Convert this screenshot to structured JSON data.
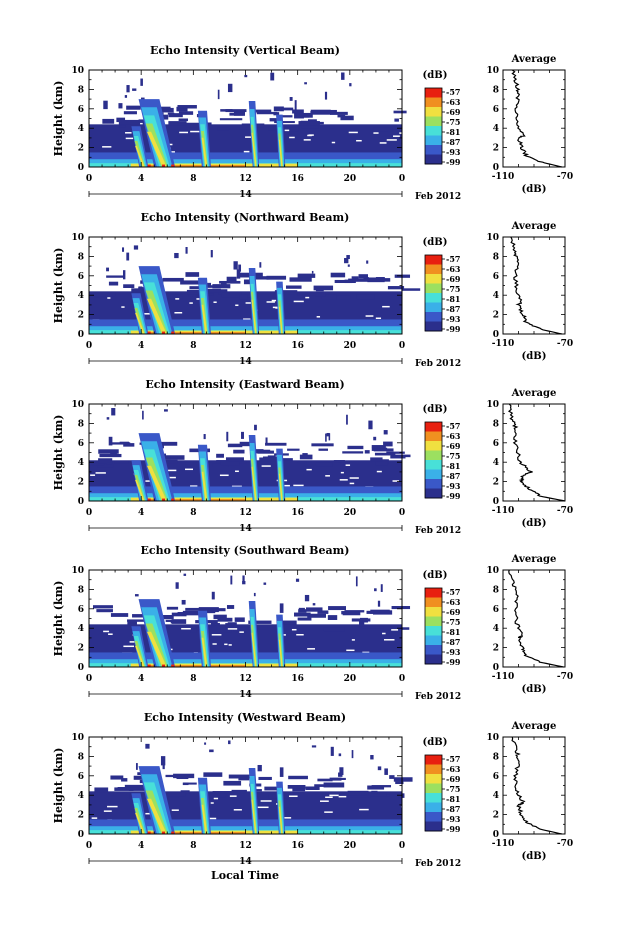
{
  "beam_titles": [
    "Echo Intensity (Vertical Beam)",
    "Echo Intensity (Northward Beam)",
    "Echo Intensity (Eastward Beam)",
    "Echo Intensity (Southward Beam)",
    "Echo Intensity (Westward Beam)"
  ],
  "ylabel": "Height (km)",
  "xlabel": "Local Time",
  "date_suffix": "Feb 2012",
  "date_day": "14",
  "colorbar_unit": "(dB)",
  "colorbar_ticks": [
    "-57",
    "-63",
    "-69",
    "-75",
    "-81",
    "-87",
    "-93",
    "-99"
  ],
  "average_title": "Average",
  "average_xlabel": "(dB)",
  "average_xticks": [
    "-110",
    "-70"
  ],
  "x_ticks": [
    "0",
    "4",
    "8",
    "12",
    "16",
    "20",
    "0"
  ],
  "y_ticks": [
    "0",
    "2",
    "4",
    "6",
    "8",
    "10"
  ],
  "colors": {
    "background_noise": "#2b2f8c",
    "low": "#3a58c8",
    "mid": "#3ab0e8",
    "cyan": "#48e0d8",
    "green": "#9ce060",
    "yellow": "#f0e040",
    "orange": "#f09020",
    "red": "#e82010"
  },
  "chart_data": [
    {
      "type": "heatmap",
      "title": "Echo Intensity (Vertical Beam)",
      "xlabel": "",
      "ylabel": "Height (km)",
      "x_range": [
        0,
        24
      ],
      "ylim": [
        0,
        10
      ],
      "color_range_db": [
        -99,
        -57
      ],
      "features": {
        "noise_layer_top_km": 4.4,
        "high_intensity_bands_hours": [
          4.2,
          5.8,
          9.0,
          12.8,
          14.8
        ]
      },
      "average_profile": {
        "x_db": [
          -72,
          -85,
          -95,
          -98,
          -100,
          -97,
          -101,
          -102,
          -100,
          -101,
          -104
        ],
        "y_km": [
          0,
          0.5,
          1.2,
          2,
          3,
          3.2,
          4.5,
          6,
          7.5,
          8.5,
          10
        ]
      }
    },
    {
      "type": "heatmap",
      "title": "Echo Intensity (Northward Beam)",
      "xlabel": "",
      "ylabel": "Height (km)",
      "x_range": [
        0,
        24
      ],
      "ylim": [
        0,
        10
      ],
      "color_range_db": [
        -99,
        -57
      ],
      "features": {
        "noise_layer_top_km": 4.4,
        "high_intensity_bands_hours": [
          4.2,
          5.8,
          9.0,
          12.8,
          14.8
        ]
      },
      "average_profile": {
        "x_db": [
          -72,
          -86,
          -95,
          -97,
          -100,
          -98,
          -101,
          -102,
          -101,
          -102,
          -105
        ],
        "y_km": [
          0,
          0.5,
          1.2,
          2,
          3,
          3.2,
          4.5,
          6,
          7.5,
          8.5,
          10
        ]
      }
    },
    {
      "type": "heatmap",
      "title": "Echo Intensity (Eastward Beam)",
      "xlabel": "",
      "ylabel": "Height (km)",
      "x_range": [
        0,
        24
      ],
      "ylim": [
        0,
        10
      ],
      "color_range_db": [
        -99,
        -57
      ],
      "features": {
        "noise_layer_top_km": 4.2,
        "high_intensity_bands_hours": [
          4.2,
          5.8,
          9.0,
          12.8,
          14.8
        ]
      },
      "average_profile": {
        "x_db": [
          -70,
          -86,
          -93,
          -98,
          -97,
          -92,
          -99,
          -102,
          -102,
          -104,
          -106
        ],
        "y_km": [
          0,
          0.5,
          1.2,
          2,
          2.6,
          3,
          4,
          6,
          7.5,
          8.5,
          10
        ]
      }
    },
    {
      "type": "heatmap",
      "title": "Echo Intensity (Southward Beam)",
      "xlabel": "",
      "ylabel": "Height (km)",
      "x_range": [
        0,
        24
      ],
      "ylim": [
        0,
        10
      ],
      "color_range_db": [
        -99,
        -57
      ],
      "features": {
        "noise_layer_top_km": 4.4,
        "high_intensity_bands_hours": [
          4.2,
          5.8,
          9.0,
          12.8,
          14.8
        ]
      },
      "average_profile": {
        "x_db": [
          -71,
          -86,
          -95,
          -97,
          -100,
          -98,
          -101,
          -102,
          -101,
          -103,
          -106
        ],
        "y_km": [
          0,
          0.5,
          1.2,
          2,
          3,
          3.2,
          4.5,
          6,
          7.5,
          8.5,
          10
        ]
      }
    },
    {
      "type": "heatmap",
      "title": "Echo Intensity (Westward Beam)",
      "xlabel": "Local Time",
      "ylabel": "Height (km)",
      "x_range": [
        0,
        24
      ],
      "ylim": [
        0,
        10
      ],
      "color_range_db": [
        -99,
        -57
      ],
      "features": {
        "noise_layer_top_km": 4.4,
        "high_intensity_bands_hours": [
          4.2,
          5.8,
          9.0,
          12.8,
          14.8
        ]
      },
      "average_profile": {
        "x_db": [
          -72,
          -86,
          -95,
          -98,
          -100,
          -97,
          -101,
          -102,
          -100,
          -101,
          -104
        ],
        "y_km": [
          0,
          0.5,
          1.2,
          2,
          3,
          3.2,
          4.5,
          6,
          7.5,
          8.5,
          10
        ]
      }
    }
  ]
}
